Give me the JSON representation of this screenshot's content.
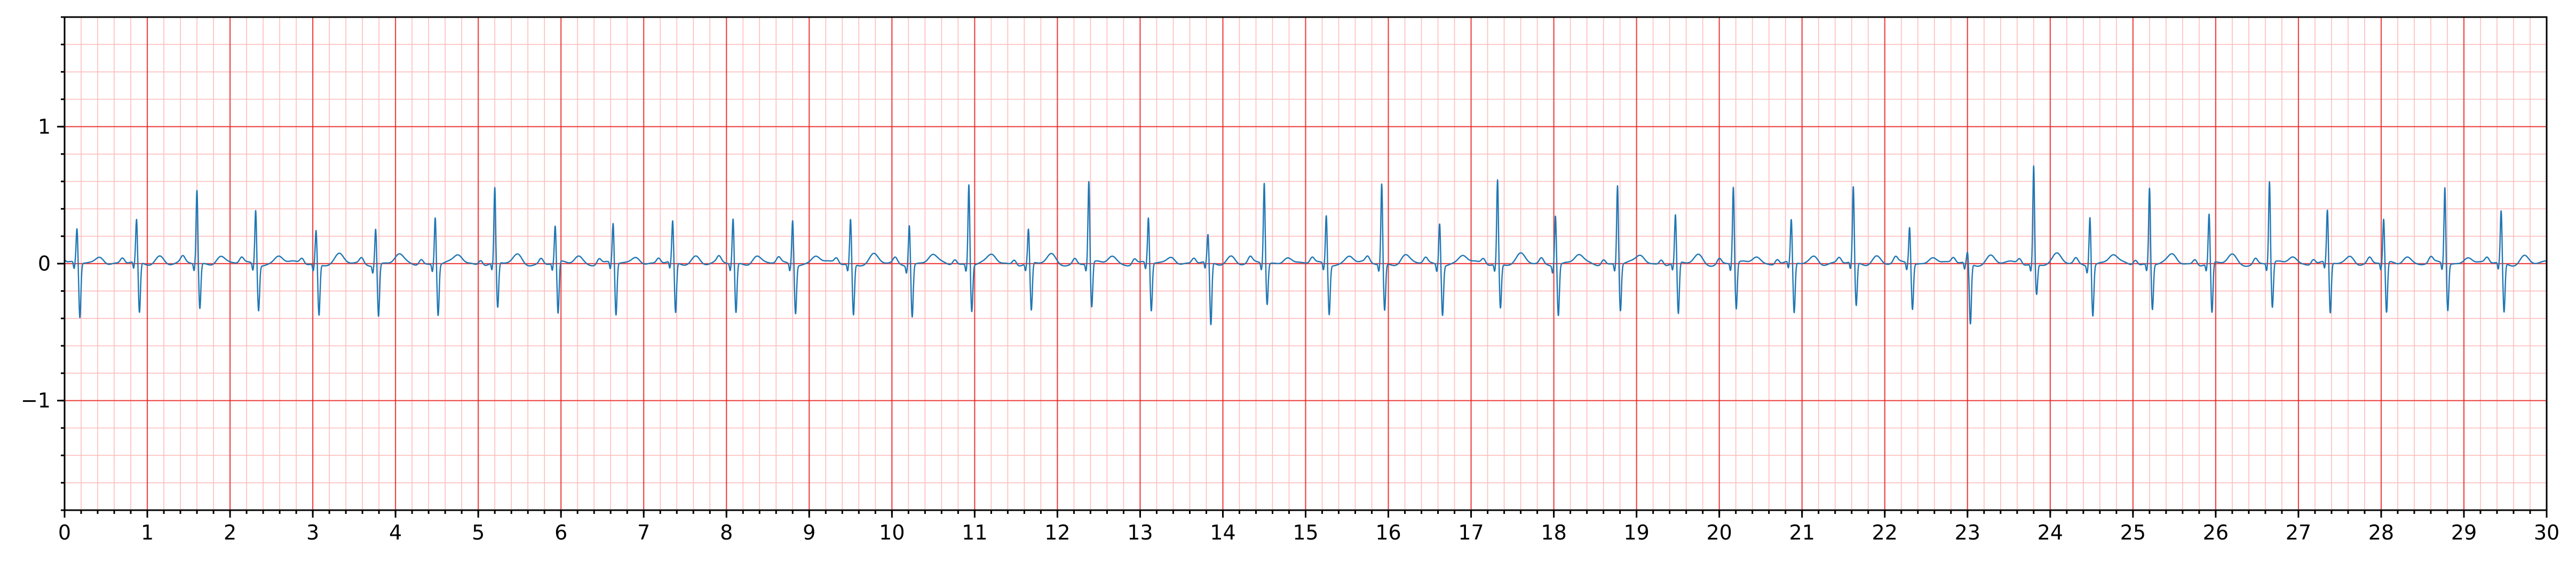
{
  "chart_data": {
    "type": "line",
    "title": "",
    "xlabel": "",
    "ylabel": "",
    "xlim": [
      0,
      30
    ],
    "ylim": [
      -1.8,
      1.8
    ],
    "grid": true,
    "x_ticks": [
      "0",
      "1",
      "2",
      "3",
      "4",
      "5",
      "6",
      "7",
      "8",
      "9",
      "10",
      "11",
      "12",
      "13",
      "14",
      "15",
      "16",
      "17",
      "18",
      "19",
      "20",
      "21",
      "22",
      "23",
      "24",
      "25",
      "26",
      "27",
      "28",
      "29",
      "30"
    ],
    "x_tick_values": [
      0,
      1,
      2,
      3,
      4,
      5,
      6,
      7,
      8,
      9,
      10,
      11,
      12,
      13,
      14,
      15,
      16,
      17,
      18,
      19,
      20,
      21,
      22,
      23,
      24,
      25,
      26,
      27,
      28,
      29,
      30
    ],
    "y_ticks": [
      "−1",
      "0",
      "1"
    ],
    "y_tick_values": [
      -1,
      0,
      1
    ],
    "x_minor_step": 0.2,
    "y_minor_step": 0.2,
    "colors": {
      "trace": "#1f77b4",
      "major_grid": "#e8191a",
      "minor_grid": "#ffbcbc"
    },
    "series": [
      {
        "beats": [
          {
            "t": 0.15,
            "r": 0.25,
            "s": -0.4
          },
          {
            "t": 0.87,
            "r": 0.31,
            "s": -0.37
          },
          {
            "t": 1.6,
            "r": 0.54,
            "s": -0.33
          },
          {
            "t": 2.31,
            "r": 0.4,
            "s": -0.33
          },
          {
            "t": 3.04,
            "r": 0.25,
            "s": -0.37
          },
          {
            "t": 3.76,
            "r": 0.27,
            "s": -0.38
          },
          {
            "t": 4.48,
            "r": 0.35,
            "s": -0.37
          },
          {
            "t": 5.2,
            "r": 0.55,
            "s": -0.33
          },
          {
            "t": 5.93,
            "r": 0.27,
            "s": -0.38
          },
          {
            "t": 6.63,
            "r": 0.29,
            "s": -0.38
          },
          {
            "t": 7.35,
            "r": 0.3,
            "s": -0.37
          },
          {
            "t": 8.08,
            "r": 0.33,
            "s": -0.36
          },
          {
            "t": 8.8,
            "r": 0.33,
            "s": -0.35
          },
          {
            "t": 9.5,
            "r": 0.33,
            "s": -0.37
          },
          {
            "t": 10.21,
            "r": 0.3,
            "s": -0.38
          },
          {
            "t": 10.93,
            "r": 0.59,
            "s": -0.34
          },
          {
            "t": 11.65,
            "r": 0.25,
            "s": -0.35
          },
          {
            "t": 12.38,
            "r": 0.6,
            "s": -0.33
          },
          {
            "t": 13.1,
            "r": 0.33,
            "s": -0.35
          },
          {
            "t": 13.82,
            "r": 0.2,
            "s": -0.46
          },
          {
            "t": 14.5,
            "r": 0.59,
            "s": -0.3
          },
          {
            "t": 15.25,
            "r": 0.36,
            "s": -0.36
          },
          {
            "t": 15.92,
            "r": 0.59,
            "s": -0.34
          },
          {
            "t": 16.62,
            "r": 0.31,
            "s": -0.36
          },
          {
            "t": 17.32,
            "r": 0.62,
            "s": -0.32
          },
          {
            "t": 18.02,
            "r": 0.37,
            "s": -0.37
          },
          {
            "t": 18.77,
            "r": 0.58,
            "s": -0.34
          },
          {
            "t": 19.47,
            "r": 0.35,
            "s": -0.38
          },
          {
            "t": 20.17,
            "r": 0.56,
            "s": -0.34
          },
          {
            "t": 20.87,
            "r": 0.31,
            "s": -0.37
          },
          {
            "t": 21.62,
            "r": 0.55,
            "s": -0.32
          },
          {
            "t": 22.3,
            "r": 0.27,
            "s": -0.33
          },
          {
            "t": 23.0,
            "r": 0.08,
            "s": -0.44
          },
          {
            "t": 23.8,
            "r": 0.72,
            "s": -0.22
          },
          {
            "t": 24.48,
            "r": 0.36,
            "s": -0.37
          },
          {
            "t": 25.2,
            "r": 0.56,
            "s": -0.33
          },
          {
            "t": 25.92,
            "r": 0.36,
            "s": -0.37
          },
          {
            "t": 26.65,
            "r": 0.6,
            "s": -0.33
          },
          {
            "t": 27.35,
            "r": 0.38,
            "s": -0.37
          },
          {
            "t": 28.03,
            "r": 0.32,
            "s": -0.37
          },
          {
            "t": 28.77,
            "r": 0.56,
            "s": -0.34
          },
          {
            "t": 29.45,
            "r": 0.38,
            "s": -0.36
          }
        ]
      }
    ]
  }
}
